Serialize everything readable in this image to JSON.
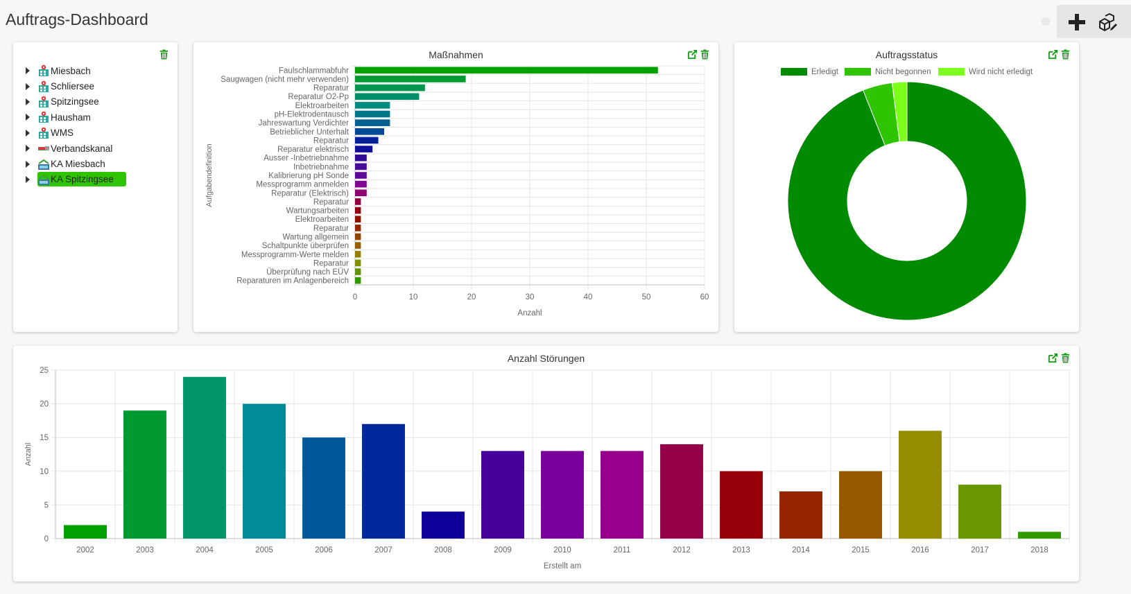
{
  "header": {
    "title": "Auftrags-Dashboard",
    "add_icon": "plus-icon",
    "settings_icon": "cubes-edit-icon"
  },
  "tree": {
    "items": [
      {
        "label": "Miesbach",
        "icon": "plant-icon",
        "selected": false
      },
      {
        "label": "Schliersee",
        "icon": "plant-icon",
        "selected": false
      },
      {
        "label": "Spitzingsee",
        "icon": "plant-icon",
        "selected": false
      },
      {
        "label": "Hausham",
        "icon": "plant-icon",
        "selected": false
      },
      {
        "label": "WMS",
        "icon": "plant-icon",
        "selected": false
      },
      {
        "label": "Verbandskanal",
        "icon": "pipe-icon",
        "selected": false
      },
      {
        "label": "KA Miesbach",
        "icon": "treatment-plant-icon",
        "selected": false
      },
      {
        "label": "KA Spitzingsee",
        "icon": "treatment-plant-icon",
        "selected": true
      }
    ],
    "selected_color": "#2ec400"
  },
  "colors": {
    "accent": "#2ec400",
    "action_icon": "#1a9e1a"
  },
  "chart_data": [
    {
      "type": "bar",
      "orientation": "horizontal",
      "title": "Maßnahmen",
      "xlabel": "Anzahl",
      "ylabel": "Aufgabendefinition",
      "xlim": [
        0,
        60
      ],
      "xticks": [
        0,
        10,
        20,
        30,
        40,
        50,
        60
      ],
      "grid": true,
      "categories": [
        "Faulschlammabfuhr",
        "Saugwagen (nicht mehr verwenden)",
        "Reparatur",
        "Reparatur O2-Pp",
        "Elektroarbeiten",
        "pH-Elektrodentausch",
        "Jahreswartung Verdichter",
        "Betrieblicher Unterhalt",
        "Reparatur",
        "Reparatur elektrisch",
        "Ausser -Inbetriebnahme",
        "Inbetriebnahme",
        "Kalibrierung pH Sonde",
        "Messprogramm anmelden",
        "Reparatur (Elektrisch)",
        "Reparatur",
        "Wartungsarbeiten",
        "Elektroarbeiten",
        "Reparatur",
        "Wartung allgemein",
        "Schaltpunkte überprüfen",
        "Messprogramm-Werte melden",
        "Reparatur",
        "Überprüfung nach EÜV",
        "Reparaturen im Anlagenbereich"
      ],
      "values": [
        52,
        19,
        12,
        11,
        6,
        6,
        6,
        5,
        4,
        3,
        2,
        2,
        2,
        2,
        2,
        1,
        1,
        1,
        1,
        1,
        1,
        1,
        1,
        1,
        1
      ],
      "colors": [
        "#00a000",
        "#009a30",
        "#009650",
        "#009068",
        "#008a80",
        "#007888",
        "#006090",
        "#004898",
        "#00209c",
        "#10109c",
        "#300c98",
        "#480c98",
        "#600898",
        "#800890",
        "#900070",
        "#900040",
        "#900010",
        "#901000",
        "#902800",
        "#904400",
        "#946000",
        "#948000",
        "#809000",
        "#609400",
        "#309800"
      ]
    },
    {
      "type": "pie",
      "variant": "doughnut",
      "title": "Auftragsstatus",
      "legend_position": "top",
      "labels": [
        "Erledigt",
        "Nicht begonnen",
        "Wird nicht erledigt"
      ],
      "values": [
        94,
        4,
        2
      ],
      "colors": [
        "#008a00",
        "#2ec400",
        "#7cff1a"
      ]
    },
    {
      "type": "bar",
      "title": "Anzahl Störungen",
      "xlabel": "Erstellt am",
      "ylabel": "Anzahl",
      "ylim": [
        0,
        25
      ],
      "yticks": [
        0,
        5,
        10,
        15,
        20,
        25
      ],
      "grid": true,
      "categories": [
        "2002",
        "2003",
        "2004",
        "2005",
        "2006",
        "2007",
        "2008",
        "2009",
        "2010",
        "2011",
        "2012",
        "2013",
        "2014",
        "2015",
        "2016",
        "2017",
        "2018"
      ],
      "values": [
        2,
        19,
        24,
        20,
        15,
        17,
        4,
        13,
        13,
        13,
        14,
        10,
        7,
        10,
        16,
        8,
        1
      ],
      "colors": [
        "#00a000",
        "#009a30",
        "#009668",
        "#008c98",
        "#00589a",
        "#00289a",
        "#10009a",
        "#48009a",
        "#7a009c",
        "#96008c",
        "#960048",
        "#960008",
        "#962400",
        "#965800",
        "#968c00",
        "#6a9600",
        "#309a00"
      ]
    }
  ]
}
